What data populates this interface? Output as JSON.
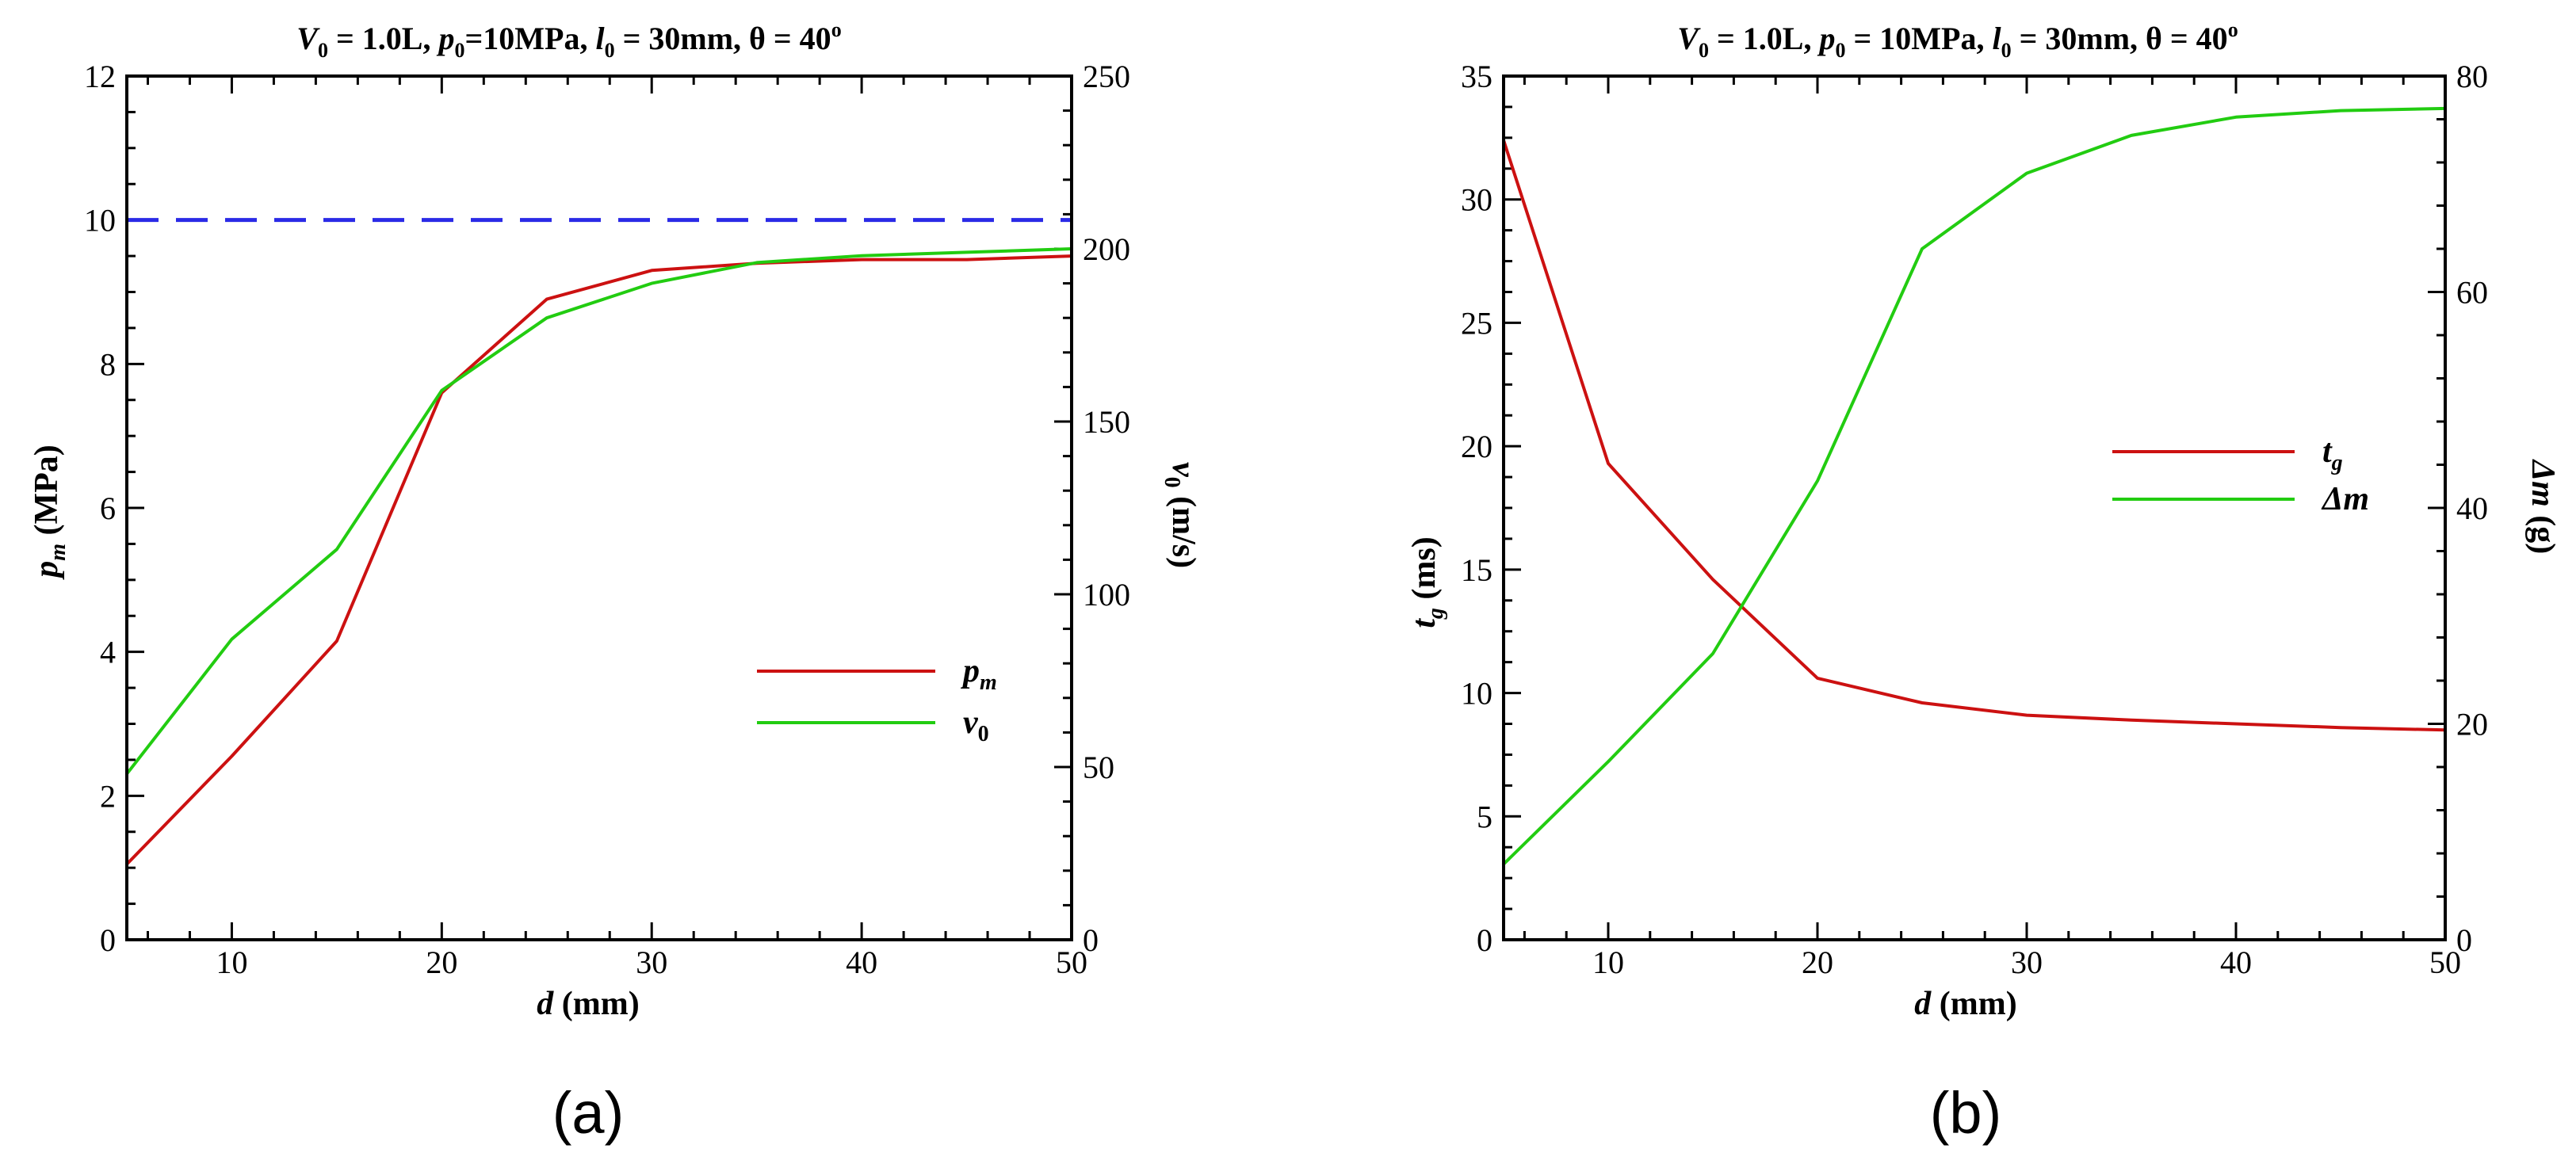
{
  "chart_data": [
    {
      "type": "line",
      "title": "V0 = 1.0L, p0=10MPa, l0 = 30mm, θ = 40o",
      "title_parts": {
        "V": "V",
        "V_sub": "0",
        "v_rest": " = 1.0L, ",
        "p": "p",
        "p_sub": "0",
        "p_rest": "=10MPa, ",
        "l": "l",
        "l_sub": "0",
        "l_rest": " = 30mm, θ = 40",
        "deg": "o"
      },
      "xlabel": "d (mm)",
      "xlabel_parts": {
        "var": "d",
        "unit": " (mm)"
      },
      "ylabel_left": "pm (MPa)",
      "ylabel_left_parts": {
        "var": "p",
        "sub": "m",
        "unit": " (MPa)"
      },
      "ylabel_right": "v0 (m/s)",
      "ylabel_right_parts": {
        "var": "v",
        "sub": "0",
        "unit": " (m/s)"
      },
      "xlim": [
        5,
        50
      ],
      "ylim_left": [
        0,
        12
      ],
      "ylim_right": [
        0,
        250
      ],
      "x_ticks": [
        "10",
        "20",
        "30",
        "40",
        "50"
      ],
      "y_left_ticks": [
        "0",
        "2",
        "4",
        "6",
        "8",
        "10",
        "12"
      ],
      "y_right_ticks": [
        "0",
        "50",
        "100",
        "150",
        "200",
        "250"
      ],
      "reference_line": {
        "value": 10,
        "axis": "left",
        "color": "#2a2ae6"
      },
      "legend_position": "lower-right",
      "series": [
        {
          "name": "pm",
          "label_var": "p",
          "label_sub": "m",
          "axis": "left",
          "color": "#cc1111",
          "x": [
            5,
            10,
            15,
            20,
            25,
            30,
            35,
            40,
            45,
            50
          ],
          "values": [
            1.05,
            2.55,
            4.15,
            7.6,
            8.9,
            9.3,
            9.4,
            9.45,
            9.45,
            9.5
          ]
        },
        {
          "name": "v0",
          "label_var": "v",
          "label_sub": "0",
          "axis": "right",
          "color": "#22cc11",
          "x": [
            5,
            10,
            15,
            20,
            25,
            30,
            35,
            40,
            45,
            50
          ],
          "values": [
            48,
            87,
            113,
            159,
            180,
            190,
            196,
            198,
            199,
            200
          ]
        }
      ],
      "panel_label": "(a)"
    },
    {
      "type": "line",
      "title": "V0 = 1.0L, p0 = 10MPa, l0 = 30mm, θ = 40o",
      "title_parts": {
        "V": "V",
        "V_sub": "0",
        "v_rest": " = 1.0L, ",
        "p": "p",
        "p_sub": "0",
        "p_rest": " = 10MPa, ",
        "l": "l",
        "l_sub": "0",
        "l_rest": " = 30mm, θ = 40",
        "deg": "o"
      },
      "xlabel": "d (mm)",
      "xlabel_parts": {
        "var": "d",
        "unit": " (mm)"
      },
      "ylabel_left": "tg (ms)",
      "ylabel_left_parts": {
        "var": "t",
        "sub": "g",
        "unit": " (ms)"
      },
      "ylabel_right": "Δm (g)",
      "ylabel_right_parts": {
        "var": "Δm",
        "sub": "",
        "unit": " (g)"
      },
      "xlim": [
        5,
        50
      ],
      "ylim_left": [
        0,
        35
      ],
      "ylim_right": [
        0,
        80
      ],
      "x_ticks": [
        "10",
        "20",
        "30",
        "40",
        "50"
      ],
      "y_left_ticks": [
        "0",
        "5",
        "10",
        "15",
        "20",
        "25",
        "30",
        "35"
      ],
      "y_right_ticks": [
        "0",
        "20",
        "40",
        "60",
        "80"
      ],
      "legend_position": "center-right",
      "series": [
        {
          "name": "tg",
          "label_var": "t",
          "label_sub": "g",
          "axis": "left",
          "color": "#cc1111",
          "x": [
            5,
            10,
            15,
            20,
            25,
            30,
            35,
            40,
            45,
            50
          ],
          "values": [
            32.4,
            19.3,
            14.6,
            10.6,
            9.6,
            9.1,
            8.9,
            8.75,
            8.6,
            8.5
          ]
        },
        {
          "name": "Δm",
          "label_var": "Δm",
          "label_sub": "",
          "axis": "right",
          "color": "#22cc11",
          "x": [
            5,
            10,
            15,
            20,
            25,
            30,
            35,
            40,
            45,
            50
          ],
          "values": [
            7,
            16.5,
            26.5,
            42.5,
            64,
            71,
            74.5,
            76.2,
            76.8,
            77
          ]
        }
      ],
      "panel_label": "(b)"
    }
  ]
}
